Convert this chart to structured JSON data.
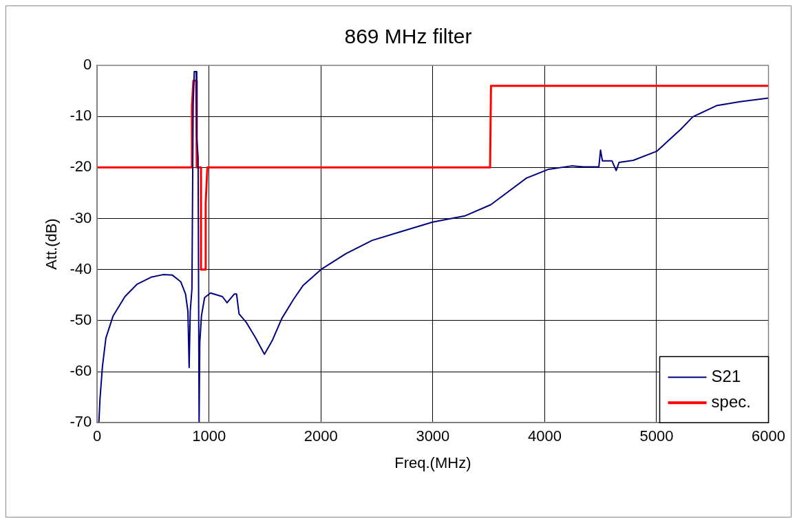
{
  "chart_data": {
    "type": "line",
    "title": "869 MHz filter",
    "xlabel": "Freq.(MHz)",
    "ylabel": "Att.(dB)",
    "xlim": [
      0,
      6000
    ],
    "xticks": [
      0,
      1000,
      2000,
      3000,
      4000,
      5000,
      6000
    ],
    "ylim": [
      -70,
      0
    ],
    "yticks": [
      -70,
      -60,
      -50,
      -40,
      -30,
      -20,
      -10,
      0
    ],
    "grid": true,
    "legend": "bottom right",
    "series": [
      {
        "name": "S21",
        "color": "#000080",
        "x": [
          15,
          25,
          47,
          78,
          142,
          248,
          355,
          482,
          588,
          673,
          747,
          790,
          811,
          822,
          832,
          847,
          858,
          868,
          885,
          890,
          902,
          911,
          917,
          932,
          960,
          1013,
          1119,
          1161,
          1225,
          1246,
          1268,
          1331,
          1416,
          1495,
          1565,
          1650,
          1756,
          1841,
          2000,
          2223,
          2457,
          2712,
          2998,
          3285,
          3518,
          3836,
          4028,
          4240,
          4346,
          4484,
          4499,
          4516,
          4601,
          4639,
          4665,
          4792,
          5004,
          5217,
          5323,
          5535,
          5747,
          6000
        ],
        "values": [
          -70,
          -65.4,
          -59,
          -53.4,
          -49.1,
          -45.3,
          -42.9,
          -41.5,
          -41,
          -41.1,
          -42.4,
          -44.8,
          -48.2,
          -59.2,
          -48.1,
          -43.8,
          -7.5,
          -1.2,
          -1.2,
          -14.2,
          -18,
          -70,
          -54.4,
          -49.1,
          -45.5,
          -44.6,
          -45.3,
          -46.5,
          -44.8,
          -44.8,
          -48.7,
          -50.3,
          -53.4,
          -56.6,
          -53.9,
          -49.6,
          -45.8,
          -43.1,
          -40,
          -36.9,
          -34.3,
          -32.6,
          -30.7,
          -29.5,
          -27.3,
          -22.1,
          -20.4,
          -19.7,
          -19.9,
          -19.9,
          -16.6,
          -18.7,
          -18.7,
          -20.6,
          -19,
          -18.6,
          -16.8,
          -12.5,
          -10.1,
          -7.9,
          -7.1,
          -6.4
        ]
      },
      {
        "name": "spec.",
        "color": "#ff0000",
        "x": [
          0,
          847,
          847,
          860,
          885,
          890,
          928,
          928,
          966,
          970,
          985,
          3512,
          3520,
          6000
        ],
        "values": [
          -20,
          -20,
          -8,
          -3,
          -3,
          -20,
          -20,
          -40,
          -40,
          -27,
          -20,
          -20,
          -4,
          -4
        ]
      }
    ]
  }
}
